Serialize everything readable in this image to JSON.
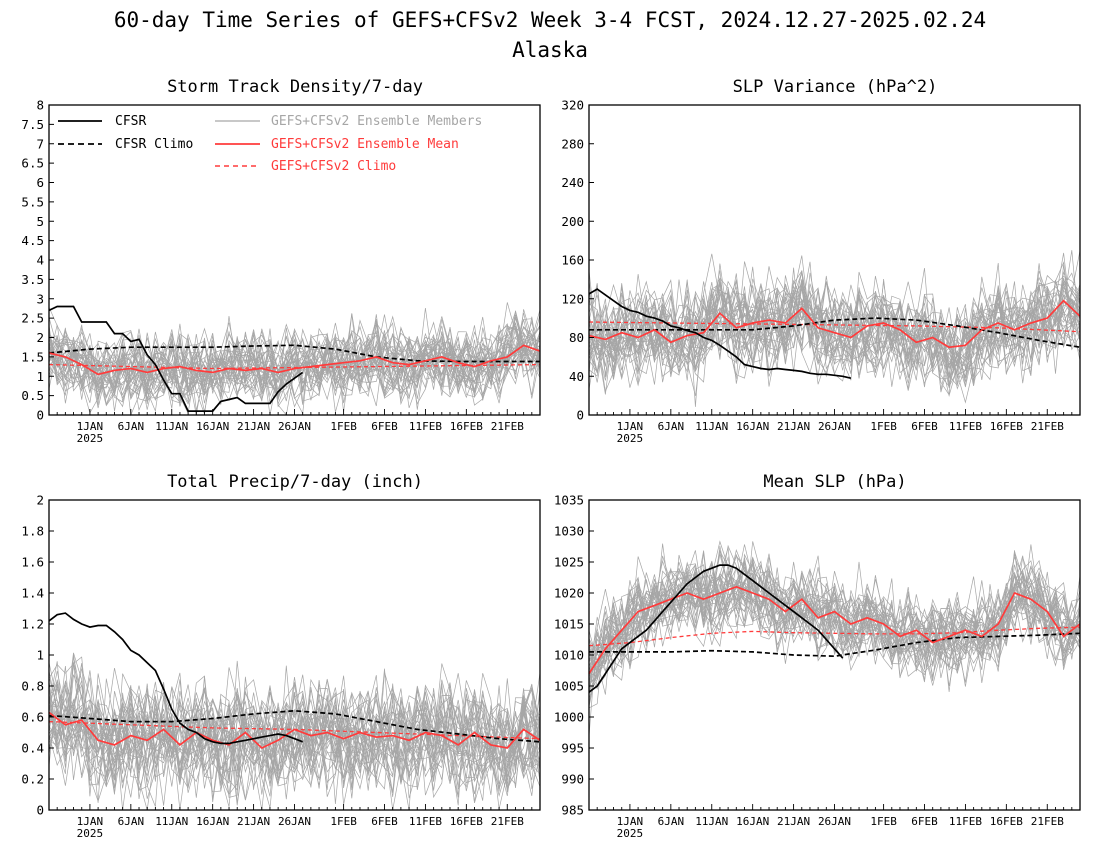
{
  "title_line1": "60-day Time Series of GEFS+CFSv2 Week 3-4 FCST, 2024.12.27-2025.02.24",
  "title_line2": "Alaska",
  "colors": {
    "cfsr": "#000000",
    "members": "#a6a6a6",
    "ens_mean": "#ff3b3b",
    "frame": "#000000"
  },
  "legend": {
    "cfsr": "CFSR",
    "cfsr_climo": "CFSR Climo",
    "members": "GEFS+CFSv2 Ensemble Members",
    "ens_mean": "GEFS+CFSv2 Ensemble Mean",
    "ens_climo": "GEFS+CFSv2 Climo"
  },
  "chart_data": [
    {
      "type": "line",
      "title": "Storm Track Density/7-day",
      "x_day_range": [
        0,
        60
      ],
      "x_ticks": [
        {
          "day": 5,
          "label": "1JAN",
          "sub": "2025"
        },
        {
          "day": 10,
          "label": "6JAN"
        },
        {
          "day": 15,
          "label": "11JAN"
        },
        {
          "day": 20,
          "label": "16JAN"
        },
        {
          "day": 25,
          "label": "21JAN"
        },
        {
          "day": 30,
          "label": "26JAN"
        },
        {
          "day": 36,
          "label": "1FEB"
        },
        {
          "day": 41,
          "label": "6FEB"
        },
        {
          "day": 46,
          "label": "11FEB"
        },
        {
          "day": 51,
          "label": "16FEB"
        },
        {
          "day": 56,
          "label": "21FEB"
        }
      ],
      "ylim": [
        0,
        8
      ],
      "y_ticks": [
        "0",
        "0.5",
        "1",
        "1.5",
        "2",
        "2.5",
        "3",
        "3.5",
        "4",
        "4.5",
        "5",
        "5.5",
        "6",
        "6.5",
        "7",
        "7.5",
        "8"
      ],
      "series": [
        {
          "name": "CFSR",
          "style": "solid",
          "color": "#000000",
          "x": [
            0,
            1,
            3,
            4,
            7,
            8,
            9,
            10,
            11,
            12,
            13,
            14,
            15,
            16,
            17,
            18,
            20,
            21,
            22,
            23,
            24,
            27,
            28,
            29,
            30,
            31
          ],
          "y": [
            2.7,
            2.8,
            2.8,
            2.4,
            2.4,
            2.1,
            2.1,
            1.9,
            1.95,
            1.55,
            1.3,
            0.9,
            0.55,
            0.55,
            0.1,
            0.1,
            0.1,
            0.35,
            0.4,
            0.45,
            0.3,
            0.3,
            0.6,
            0.8,
            0.95,
            1.1
          ]
        },
        {
          "name": "CFSR Climo",
          "style": "dashed",
          "color": "#000000",
          "x": [
            0,
            5,
            10,
            15,
            20,
            25,
            30,
            35,
            40,
            45,
            50,
            55,
            60
          ],
          "y": [
            1.6,
            1.7,
            1.75,
            1.75,
            1.75,
            1.78,
            1.8,
            1.7,
            1.5,
            1.4,
            1.38,
            1.38,
            1.38
          ]
        },
        {
          "name": "GEFS+CFSv2 Ensemble Mean",
          "style": "solid",
          "color": "#ff3b3b",
          "x": [
            0,
            2,
            4,
            6,
            8,
            10,
            12,
            14,
            16,
            18,
            20,
            22,
            24,
            26,
            28,
            30,
            32,
            34,
            36,
            38,
            40,
            42,
            44,
            46,
            48,
            50,
            52,
            54,
            56,
            58,
            60
          ],
          "y": [
            1.6,
            1.5,
            1.3,
            1.05,
            1.15,
            1.2,
            1.1,
            1.2,
            1.25,
            1.15,
            1.1,
            1.2,
            1.15,
            1.2,
            1.1,
            1.2,
            1.25,
            1.3,
            1.35,
            1.4,
            1.5,
            1.35,
            1.3,
            1.4,
            1.5,
            1.35,
            1.25,
            1.4,
            1.5,
            1.8,
            1.65
          ]
        },
        {
          "name": "GEFS+CFSv2 Climo",
          "style": "dashed",
          "color": "#ff3b3b",
          "x": [
            0,
            20,
            40,
            60
          ],
          "y": [
            1.3,
            1.2,
            1.25,
            1.3
          ]
        }
      ]
    },
    {
      "type": "line",
      "title": "SLP Variance (hPa^2)",
      "x_day_range": [
        0,
        60
      ],
      "x_ticks": [
        {
          "day": 5,
          "label": "1JAN",
          "sub": "2025"
        },
        {
          "day": 10,
          "label": "6JAN"
        },
        {
          "day": 15,
          "label": "11JAN"
        },
        {
          "day": 20,
          "label": "16JAN"
        },
        {
          "day": 25,
          "label": "21JAN"
        },
        {
          "day": 30,
          "label": "26JAN"
        },
        {
          "day": 36,
          "label": "1FEB"
        },
        {
          "day": 41,
          "label": "6FEB"
        },
        {
          "day": 46,
          "label": "11FEB"
        },
        {
          "day": 51,
          "label": "16FEB"
        },
        {
          "day": 56,
          "label": "21FEB"
        }
      ],
      "ylim": [
        0,
        320
      ],
      "y_ticks": [
        "0",
        "40",
        "80",
        "120",
        "160",
        "200",
        "240",
        "280",
        "320"
      ],
      "series": [
        {
          "name": "CFSR",
          "style": "solid",
          "color": "#000000",
          "x": [
            0,
            1,
            2,
            3,
            4,
            5,
            6,
            7,
            8,
            9,
            10,
            11,
            12,
            13,
            14,
            15,
            16,
            17,
            18,
            19,
            20,
            21,
            22,
            23,
            24,
            25,
            26,
            27,
            28,
            29,
            30,
            31,
            32
          ],
          "y": [
            125,
            130,
            124,
            118,
            112,
            108,
            106,
            102,
            100,
            97,
            92,
            90,
            87,
            85,
            80,
            77,
            72,
            66,
            60,
            52,
            50,
            48,
            47,
            48,
            47,
            46,
            45,
            43,
            42,
            42,
            41,
            40,
            38
          ]
        },
        {
          "name": "CFSR Climo",
          "style": "dashed",
          "color": "#000000",
          "x": [
            0,
            5,
            10,
            15,
            20,
            25,
            30,
            35,
            40,
            45,
            50,
            55,
            60
          ],
          "y": [
            88,
            88,
            88,
            88,
            88,
            92,
            98,
            100,
            98,
            92,
            85,
            77,
            70
          ]
        },
        {
          "name": "GEFS+CFSv2 Ensemble Mean",
          "style": "solid",
          "color": "#ff3b3b",
          "x": [
            0,
            2,
            4,
            6,
            8,
            10,
            12,
            14,
            16,
            18,
            20,
            22,
            24,
            26,
            28,
            30,
            32,
            34,
            36,
            38,
            40,
            42,
            44,
            46,
            48,
            50,
            52,
            54,
            56,
            58,
            60
          ],
          "y": [
            82,
            78,
            85,
            80,
            88,
            75,
            82,
            85,
            105,
            90,
            95,
            98,
            95,
            110,
            90,
            85,
            80,
            92,
            95,
            88,
            75,
            80,
            70,
            72,
            88,
            95,
            88,
            95,
            100,
            118,
            102
          ]
        },
        {
          "name": "GEFS+CFSv2 Climo",
          "style": "dashed",
          "color": "#ff3b3b",
          "x": [
            0,
            10,
            20,
            30,
            40,
            50,
            60
          ],
          "y": [
            96,
            95,
            94,
            93,
            92,
            90,
            86
          ]
        }
      ]
    },
    {
      "type": "line",
      "title": "Total Precip/7-day (inch)",
      "x_day_range": [
        0,
        60
      ],
      "x_ticks": [
        {
          "day": 5,
          "label": "1JAN",
          "sub": "2025"
        },
        {
          "day": 10,
          "label": "6JAN"
        },
        {
          "day": 15,
          "label": "11JAN"
        },
        {
          "day": 20,
          "label": "16JAN"
        },
        {
          "day": 25,
          "label": "21JAN"
        },
        {
          "day": 30,
          "label": "26JAN"
        },
        {
          "day": 36,
          "label": "1FEB"
        },
        {
          "day": 41,
          "label": "6FEB"
        },
        {
          "day": 46,
          "label": "11FEB"
        },
        {
          "day": 51,
          "label": "16FEB"
        },
        {
          "day": 56,
          "label": "21FEB"
        }
      ],
      "ylim": [
        0,
        2
      ],
      "y_ticks": [
        "0",
        "0.2",
        "0.4",
        "0.6",
        "0.8",
        "1",
        "1.2",
        "1.4",
        "1.6",
        "1.8",
        "2"
      ],
      "series": [
        {
          "name": "CFSR",
          "style": "solid",
          "color": "#000000",
          "x": [
            0,
            1,
            2,
            3,
            4,
            5,
            6,
            7,
            8,
            9,
            10,
            11,
            12,
            13,
            14,
            15,
            16,
            17,
            18,
            19,
            20,
            21,
            22,
            23,
            24,
            25,
            26,
            27,
            28,
            29,
            30,
            31
          ],
          "y": [
            1.22,
            1.26,
            1.27,
            1.23,
            1.2,
            1.18,
            1.19,
            1.19,
            1.15,
            1.1,
            1.03,
            1.0,
            0.95,
            0.9,
            0.78,
            0.65,
            0.56,
            0.52,
            0.5,
            0.46,
            0.44,
            0.43,
            0.43,
            0.44,
            0.45,
            0.46,
            0.47,
            0.48,
            0.49,
            0.48,
            0.46,
            0.44
          ]
        },
        {
          "name": "CFSR Climo",
          "style": "dashed",
          "color": "#000000",
          "x": [
            0,
            5,
            10,
            15,
            20,
            25,
            30,
            35,
            40,
            45,
            50,
            55,
            60
          ],
          "y": [
            0.61,
            0.59,
            0.57,
            0.57,
            0.59,
            0.62,
            0.64,
            0.62,
            0.57,
            0.52,
            0.49,
            0.46,
            0.44
          ]
        },
        {
          "name": "GEFS+CFSv2 Ensemble Mean",
          "style": "solid",
          "color": "#ff3b3b",
          "x": [
            0,
            2,
            4,
            6,
            8,
            10,
            12,
            14,
            16,
            18,
            20,
            22,
            24,
            26,
            28,
            30,
            32,
            34,
            36,
            38,
            40,
            42,
            44,
            46,
            48,
            50,
            52,
            54,
            56,
            58,
            60
          ],
          "y": [
            0.63,
            0.55,
            0.58,
            0.45,
            0.42,
            0.48,
            0.45,
            0.52,
            0.42,
            0.5,
            0.45,
            0.42,
            0.5,
            0.4,
            0.45,
            0.52,
            0.48,
            0.5,
            0.46,
            0.5,
            0.47,
            0.48,
            0.45,
            0.5,
            0.48,
            0.42,
            0.5,
            0.42,
            0.4,
            0.52,
            0.45
          ]
        },
        {
          "name": "GEFS+CFSv2 Climo",
          "style": "dashed",
          "color": "#ff3b3b",
          "x": [
            0,
            10,
            20,
            30,
            40,
            50,
            60
          ],
          "y": [
            0.57,
            0.55,
            0.53,
            0.52,
            0.5,
            0.48,
            0.46
          ]
        }
      ]
    },
    {
      "type": "line",
      "title": "Mean SLP (hPa)",
      "x_day_range": [
        0,
        60
      ],
      "x_ticks": [
        {
          "day": 5,
          "label": "1JAN",
          "sub": "2025"
        },
        {
          "day": 10,
          "label": "6JAN"
        },
        {
          "day": 15,
          "label": "11JAN"
        },
        {
          "day": 20,
          "label": "16JAN"
        },
        {
          "day": 25,
          "label": "21JAN"
        },
        {
          "day": 30,
          "label": "26JAN"
        },
        {
          "day": 36,
          "label": "1FEB"
        },
        {
          "day": 41,
          "label": "6FEB"
        },
        {
          "day": 46,
          "label": "11FEB"
        },
        {
          "day": 51,
          "label": "16FEB"
        },
        {
          "day": 56,
          "label": "21FEB"
        }
      ],
      "ylim": [
        985,
        1035
      ],
      "y_ticks": [
        "985",
        "990",
        "995",
        "1000",
        "1005",
        "1010",
        "1015",
        "1020",
        "1025",
        "1030",
        "1035"
      ],
      "series": [
        {
          "name": "CFSR",
          "style": "solid",
          "color": "#000000",
          "x": [
            0,
            1,
            2,
            3,
            4,
            5,
            6,
            7,
            8,
            9,
            10,
            11,
            12,
            13,
            14,
            15,
            16,
            17,
            18,
            19,
            20,
            21,
            22,
            23,
            24,
            25,
            26,
            27,
            28,
            29,
            30,
            31
          ],
          "y": [
            1004,
            1005,
            1007,
            1009,
            1011,
            1012,
            1013,
            1014,
            1015.5,
            1017,
            1018.5,
            1020,
            1021.5,
            1022.5,
            1023.5,
            1024,
            1024.5,
            1024.5,
            1024,
            1023,
            1022,
            1021,
            1020,
            1019,
            1018,
            1017,
            1016,
            1015,
            1014,
            1012.5,
            1011,
            1009.5
          ]
        },
        {
          "name": "CFSR Climo",
          "style": "dashed",
          "color": "#000000",
          "x": [
            0,
            5,
            10,
            15,
            20,
            25,
            30,
            35,
            40,
            45,
            50,
            55,
            60
          ],
          "y": [
            1010.5,
            1010.5,
            1010.5,
            1010.7,
            1010.5,
            1010,
            1009.8,
            1010.8,
            1012,
            1012.8,
            1013,
            1013.2,
            1013.5
          ]
        },
        {
          "name": "GEFS+CFSv2 Ensemble Mean",
          "style": "solid",
          "color": "#ff3b3b",
          "x": [
            0,
            2,
            4,
            6,
            8,
            10,
            12,
            14,
            16,
            18,
            20,
            22,
            24,
            26,
            28,
            30,
            32,
            34,
            36,
            38,
            40,
            42,
            44,
            46,
            48,
            50,
            52,
            54,
            56,
            58,
            60
          ],
          "y": [
            1007,
            1011,
            1014,
            1017,
            1018,
            1019,
            1020,
            1019,
            1020,
            1021,
            1020,
            1019,
            1017,
            1019,
            1016,
            1017,
            1015,
            1016,
            1015,
            1013,
            1014,
            1012,
            1013,
            1014,
            1013,
            1015,
            1020,
            1019,
            1017,
            1013,
            1015
          ]
        },
        {
          "name": "GEFS+CFSv2 Climo",
          "style": "dashed",
          "color": "#ff3b3b",
          "x": [
            0,
            5,
            10,
            15,
            20,
            25,
            30,
            35,
            40,
            45,
            50,
            55,
            60
          ],
          "y": [
            1011.5,
            1012,
            1012.8,
            1013.5,
            1013.8,
            1013.6,
            1013.5,
            1013.4,
            1013.4,
            1013.6,
            1014,
            1014.3,
            1014.5
          ]
        }
      ]
    }
  ]
}
